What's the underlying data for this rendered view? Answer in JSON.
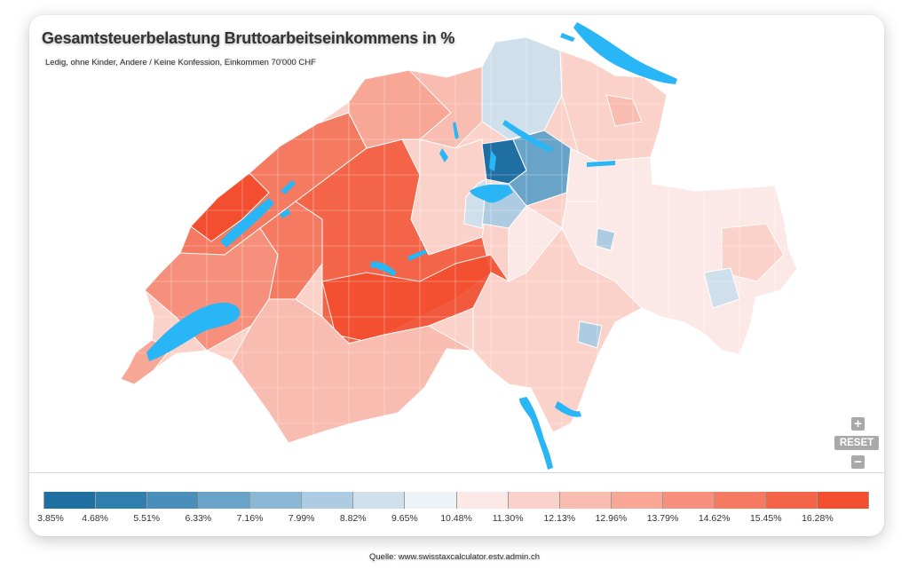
{
  "title": "Gesamtsteuerbelastung Bruttoarbeitseinkommens in %",
  "subtitle": "Ledig, ohne Kinder, Andere / Keine Konfession, Einkommen 70'000 CHF",
  "controls": {
    "zoom_in": "+",
    "reset": "RESET",
    "zoom_out": "−"
  },
  "legend": {
    "colors": [
      "#1f6fa3",
      "#2e7fae",
      "#4a8fbb",
      "#6aa3c8",
      "#8bb8d5",
      "#aecce1",
      "#cfe0ec",
      "#edf2f6",
      "#fce8e6",
      "#fbd2ca",
      "#f9bcb0",
      "#f8a696",
      "#f6907c",
      "#f57a62",
      "#f36448",
      "#f24e2f"
    ],
    "labels": [
      "3.85%",
      "4.68%",
      "5.51%",
      "6.33%",
      "7.16%",
      "7.99%",
      "8.82%",
      "9.65%",
      "10.48%",
      "11.30%",
      "12.13%",
      "12.96%",
      "13.79%",
      "14.62%",
      "15.45%",
      "16.28%"
    ]
  },
  "map": {
    "water_color": "#29b6f6",
    "border_color": "#ffffff"
  },
  "source": "Quelle: www.swisstaxcalculator.estv.admin.ch"
}
